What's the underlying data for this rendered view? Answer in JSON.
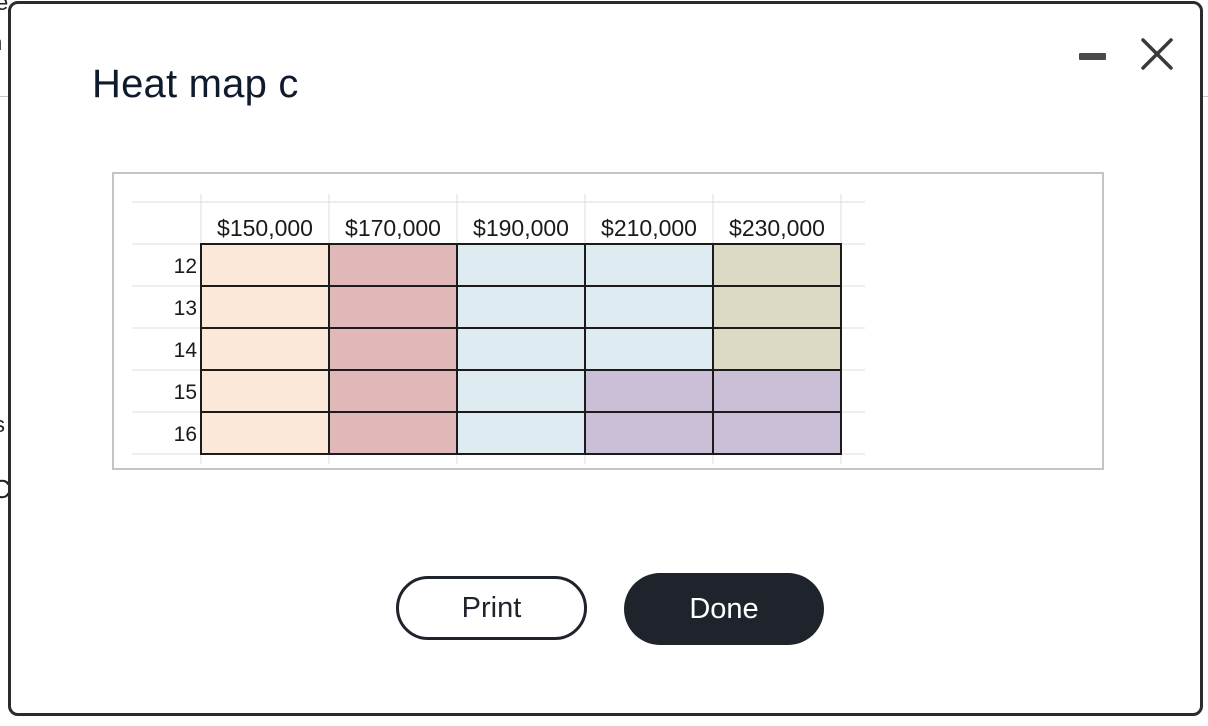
{
  "background": {
    "fragments": [
      "e",
      "n",
      "s",
      "C"
    ]
  },
  "dialog": {
    "title": "Heat map c",
    "minimize_icon": "minimize-icon",
    "close_icon": "close-icon"
  },
  "chart_data": {
    "type": "heatmap",
    "columns": [
      "$150,000",
      "$170,000",
      "$190,000",
      "$210,000",
      "$230,000"
    ],
    "rows": [
      "12",
      "13",
      "14",
      "15",
      "16"
    ],
    "cell_colors": [
      [
        "#fbe8d9",
        "#e1b8b8",
        "#deebf0",
        "#deebf0",
        "#dcd9c4"
      ],
      [
        "#fbe8d9",
        "#e1b8b8",
        "#deebf0",
        "#deebf0",
        "#dcd9c4"
      ],
      [
        "#fbe8d9",
        "#e1b8b8",
        "#deebf0",
        "#deebf0",
        "#dcd9c4"
      ],
      [
        "#fbe8d9",
        "#e1b8b8",
        "#deebf0",
        "#cbbfd8",
        "#cbbfd8"
      ],
      [
        "#fbe8d9",
        "#e1b8b8",
        "#deebf0",
        "#cbbfd8",
        "#cbbfd8"
      ]
    ],
    "grid": true
  },
  "buttons": {
    "print_label": "Print",
    "done_label": "Done"
  },
  "colors": {
    "primary": "#1f232c",
    "title": "#0f1a2c"
  }
}
